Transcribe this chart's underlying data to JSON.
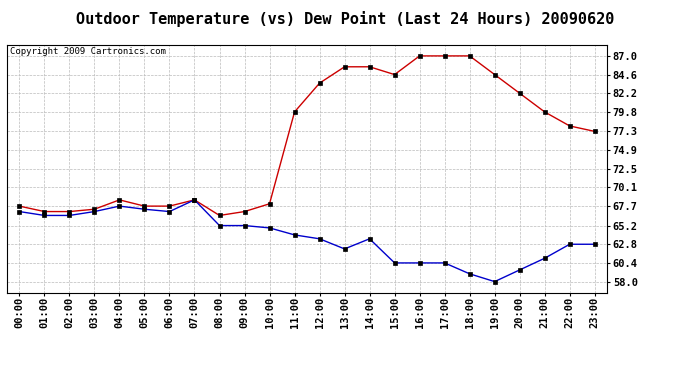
{
  "title": "Outdoor Temperature (vs) Dew Point (Last 24 Hours) 20090620",
  "copyright": "Copyright 2009 Cartronics.com",
  "hours": [
    "00:00",
    "01:00",
    "02:00",
    "03:00",
    "04:00",
    "05:00",
    "06:00",
    "07:00",
    "08:00",
    "09:00",
    "10:00",
    "11:00",
    "12:00",
    "13:00",
    "14:00",
    "15:00",
    "16:00",
    "17:00",
    "18:00",
    "19:00",
    "20:00",
    "21:00",
    "22:00",
    "23:00"
  ],
  "temp": [
    67.7,
    67.0,
    67.0,
    67.3,
    68.5,
    67.7,
    67.7,
    68.5,
    66.5,
    67.0,
    68.0,
    79.8,
    83.5,
    85.6,
    85.6,
    84.6,
    87.0,
    87.0,
    87.0,
    84.6,
    82.2,
    79.8,
    78.0,
    77.3
  ],
  "dew": [
    67.0,
    66.5,
    66.5,
    67.0,
    67.7,
    67.3,
    67.0,
    68.5,
    65.2,
    65.2,
    64.9,
    64.0,
    63.5,
    62.2,
    63.5,
    60.4,
    60.4,
    60.4,
    59.0,
    58.0,
    59.5,
    61.0,
    62.8,
    62.8
  ],
  "temp_color": "#cc0000",
  "dew_color": "#0000cc",
  "yticks": [
    58.0,
    60.4,
    62.8,
    65.2,
    67.7,
    70.1,
    72.5,
    74.9,
    77.3,
    79.8,
    82.2,
    84.6,
    87.0
  ],
  "ymin": 56.6,
  "ymax": 88.4,
  "bg_color": "#ffffff",
  "grid_color": "#bbbbbb",
  "title_fontsize": 11,
  "axis_label_fontsize": 7.5,
  "copyright_fontsize": 6.5
}
